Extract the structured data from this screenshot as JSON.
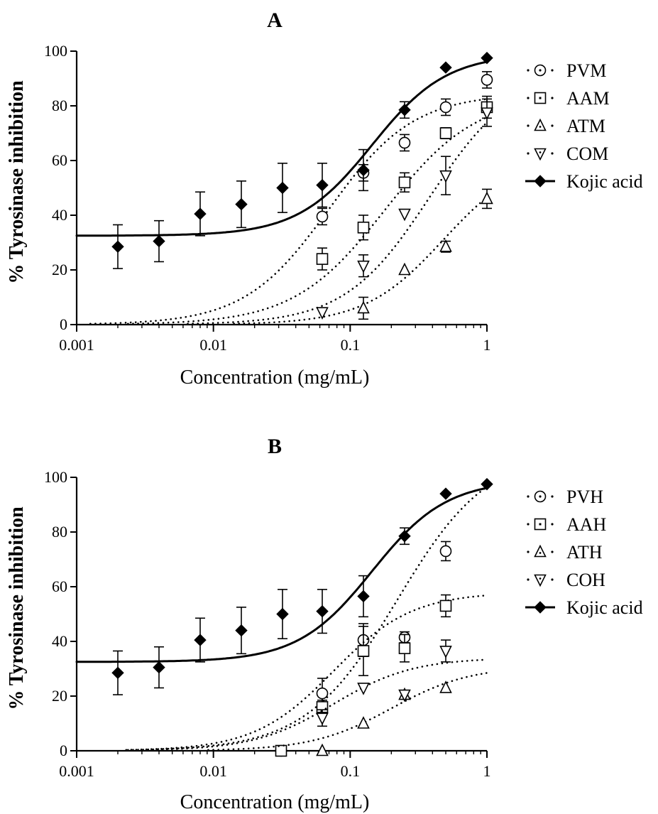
{
  "chart_data": [
    {
      "type": "scatter",
      "title": "A",
      "xlabel": "Concentration (mg/mL)",
      "ylabel": "% Tyrosinase inhibition",
      "xscale": "log",
      "xlim": [
        0.001,
        1
      ],
      "ylim": [
        0,
        100
      ],
      "xticks": [
        0.001,
        0.01,
        0.1,
        1
      ],
      "xtick_labels": [
        "0.001",
        "0.01",
        "0.1",
        "1"
      ],
      "yticks": [
        0,
        20,
        40,
        60,
        80,
        100
      ],
      "legend_position": "right",
      "series": [
        {
          "name": "PVM",
          "marker": "circle",
          "fit": "dotted",
          "x": [
            0.0625,
            0.125,
            0.25,
            0.5,
            1
          ],
          "y": [
            39.5,
            55.5,
            66.5,
            79.5,
            89.5
          ],
          "err": [
            3,
            3,
            3,
            3,
            3
          ],
          "fit_params": {
            "bottom": 0,
            "top": 84.5,
            "ec50": 0.07,
            "hill": 1.4
          }
        },
        {
          "name": "AAM",
          "marker": "square",
          "fit": "dotted",
          "x": [
            0.0625,
            0.125,
            0.25,
            0.5,
            1
          ],
          "y": [
            24,
            35.5,
            52,
            70,
            79.5
          ],
          "err": [
            4,
            4.5,
            3.5,
            2,
            4
          ],
          "fit_params": {
            "bottom": 0,
            "top": 84,
            "ec50": 0.18,
            "hill": 1.3
          }
        },
        {
          "name": "ATM",
          "marker": "triangle-up",
          "fit": "dotted",
          "x": [
            0.125,
            0.25,
            0.5,
            1
          ],
          "y": [
            6,
            20,
            28.5,
            46
          ],
          "err": [
            4,
            0,
            2,
            3.5
          ],
          "fit_params": {
            "bottom": 0,
            "top": 62,
            "ec50": 0.48,
            "hill": 1.5
          }
        },
        {
          "name": "COM",
          "marker": "triangle-down",
          "fit": "dotted",
          "x": [
            0.0625,
            0.125,
            0.25,
            0.5,
            1
          ],
          "y": [
            4.5,
            21.5,
            40.5,
            54.5,
            77.5
          ],
          "err": [
            0,
            4,
            0,
            7,
            5
          ],
          "fit_params": {
            "bottom": 0,
            "top": 93,
            "ec50": 0.38,
            "hill": 1.4
          }
        },
        {
          "name": "Kojic acid",
          "marker": "diamond-filled",
          "fit": "solid",
          "x": [
            0.002,
            0.004,
            0.008,
            0.016,
            0.032,
            0.0625,
            0.125,
            0.25,
            0.5,
            1
          ],
          "y": [
            28.5,
            30.5,
            40.5,
            44,
            50,
            51,
            56.5,
            78.5,
            94,
            97.5
          ],
          "err": [
            8,
            7.5,
            8,
            8.5,
            9,
            8,
            7.5,
            3,
            0,
            0
          ],
          "fit_params": {
            "bottom": 32.5,
            "top": 99,
            "ec50": 0.145,
            "hill": 1.6
          }
        }
      ]
    },
    {
      "type": "scatter",
      "title": "B",
      "xlabel": "Concentration (mg/mL)",
      "ylabel": "% Tyrosinase inhibition",
      "xscale": "log",
      "xlim": [
        0.001,
        1
      ],
      "ylim": [
        0,
        100
      ],
      "xticks": [
        0.001,
        0.01,
        0.1,
        1
      ],
      "xtick_labels": [
        "0.001",
        "0.01",
        "0.1",
        "1"
      ],
      "yticks": [
        0,
        20,
        40,
        60,
        80,
        100
      ],
      "legend_position": "right",
      "series": [
        {
          "name": "PVH",
          "marker": "circle",
          "fit": "dotted",
          "x": [
            0.03125,
            0.0625,
            0.125,
            0.25,
            0.5
          ],
          "y": [
            0,
            21,
            40.5,
            41.5,
            73
          ],
          "err": [
            0,
            5.5,
            6,
            2,
            3.5
          ],
          "fit_params": {
            "bottom": 0,
            "top": 110,
            "ec50": 0.22,
            "hill": 1.3
          }
        },
        {
          "name": "AAH",
          "marker": "square",
          "fit": "dotted",
          "x": [
            0.03125,
            0.0625,
            0.125,
            0.25,
            0.5
          ],
          "y": [
            0,
            16,
            36.5,
            37.5,
            53
          ],
          "err": [
            0,
            2.5,
            9,
            5,
            4
          ],
          "fit_params": {
            "bottom": 0,
            "top": 58,
            "ec50": 0.075,
            "hill": 1.5
          }
        },
        {
          "name": "ATH",
          "marker": "triangle-up",
          "fit": "dotted",
          "x": [
            0.0625,
            0.125,
            0.25,
            0.5
          ],
          "y": [
            0,
            10,
            20.5,
            23
          ],
          "err": [
            0,
            0,
            0,
            0
          ],
          "fit_params": {
            "bottom": 0,
            "top": 31,
            "ec50": 0.2,
            "hill": 1.5
          }
        },
        {
          "name": "COH",
          "marker": "triangle-down",
          "fit": "dotted",
          "x": [
            0.0625,
            0.125,
            0.25,
            0.5
          ],
          "y": [
            12,
            23,
            20.5,
            36.5
          ],
          "err": [
            3,
            0,
            0,
            4
          ],
          "fit_params": {
            "bottom": 0,
            "top": 34,
            "ec50": 0.075,
            "hill": 1.5
          }
        },
        {
          "name": "Kojic acid",
          "marker": "diamond-filled",
          "fit": "solid",
          "x": [
            0.002,
            0.004,
            0.008,
            0.016,
            0.032,
            0.0625,
            0.125,
            0.25,
            0.5,
            1
          ],
          "y": [
            28.5,
            30.5,
            40.5,
            44,
            50,
            51,
            56.5,
            78.5,
            94,
            97.5
          ],
          "err": [
            8,
            7.5,
            8,
            8.5,
            9,
            8,
            7.5,
            3,
            0,
            0
          ],
          "fit_params": {
            "bottom": 32.5,
            "top": 99,
            "ec50": 0.145,
            "hill": 1.6
          }
        }
      ]
    }
  ]
}
